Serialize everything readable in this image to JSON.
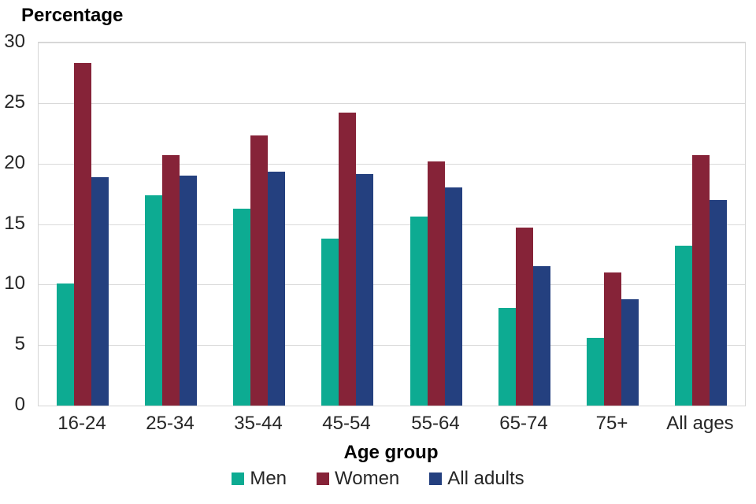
{
  "chart_data": {
    "type": "bar",
    "title": "Percentage",
    "xlabel": "Age group",
    "ylabel": "Percentage",
    "ylim": [
      0,
      30
    ],
    "yticks": [
      0,
      5,
      10,
      15,
      20,
      25,
      30
    ],
    "grid": true,
    "legend_position": "bottom",
    "categories": [
      "16-24",
      "25-34",
      "35-44",
      "45-54",
      "55-64",
      "65-74",
      "75+",
      "All ages"
    ],
    "series": [
      {
        "name": "Men",
        "color": "#0dab92",
        "values": [
          10.1,
          17.4,
          16.3,
          13.8,
          15.6,
          8.1,
          5.6,
          13.2
        ]
      },
      {
        "name": "Women",
        "color": "#862338",
        "values": [
          28.3,
          20.7,
          22.3,
          24.2,
          20.2,
          14.7,
          11.0,
          20.7
        ]
      },
      {
        "name": "All adults",
        "color": "#24407f",
        "values": [
          18.9,
          19.0,
          19.3,
          19.1,
          18.0,
          11.5,
          8.8,
          17.0
        ]
      }
    ],
    "colors": {
      "gridline": "#d9d9d9",
      "plot_border": "#d6d6d6",
      "tick_text": "#262626",
      "title_text": "#000000"
    }
  }
}
